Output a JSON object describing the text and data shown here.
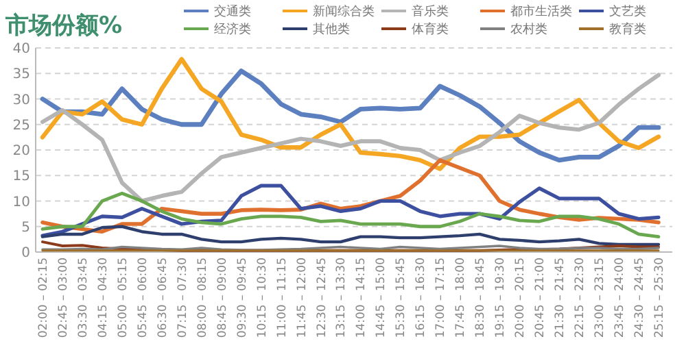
{
  "chart_data": {
    "type": "line",
    "title": "市场份额%",
    "categories": [
      "02:00 – 02:15",
      "02:45 – 03:00",
      "03:30 – 03:45",
      "04:15 – 04:30",
      "05:00 – 05:15",
      "05:45 – 06:00",
      "06:30 – 06:45",
      "07:15 – 07:30",
      "08:00 – 08:15",
      "08:45 – 09:00",
      "09:30 – 09:45",
      "10:15 – 10:30",
      "11:00 – 11:15",
      "11:45 – 12:00",
      "12:30 – 12:45",
      "13:15 – 13:30",
      "14:00 – 14:15",
      "14:45 – 15:00",
      "15:30 – 15:45",
      "16:15 – 16:30",
      "17:00 – 17:15",
      "17:45 – 18:00",
      "18:30 – 18:45",
      "19:15 – 19:30",
      "20:00 – 20:15",
      "20:45 – 21:00",
      "21:30 – 21:45",
      "22:15 – 22:30",
      "23:00 – 23:15",
      "23:45 – 24:00",
      "24:30 – 24:45",
      "25:15 – 25:30"
    ],
    "series": [
      {
        "name": "交通类",
        "color": "#5b7fbf",
        "values": [
          30,
          27.5,
          27.5,
          27,
          32,
          28,
          26,
          25,
          25,
          31,
          35.5,
          33,
          29,
          27,
          26.5,
          25.5,
          28,
          28.2,
          28,
          28.2,
          32.5,
          30.7,
          28.5,
          25.3,
          21.7,
          19.5,
          18,
          18.6,
          18.6,
          20.8,
          24.4,
          24.4
        ]
      },
      {
        "name": "新闻综合类",
        "color": "#f5a623",
        "values": [
          22.5,
          27.5,
          27,
          29.5,
          26,
          25,
          32,
          37.8,
          32,
          29.5,
          23,
          22,
          20.5,
          20.5,
          23,
          25,
          19.5,
          19.2,
          18.8,
          18,
          16.3,
          20.4,
          22.6,
          22.6,
          23,
          25.3,
          27.6,
          29.8,
          25.3,
          21.7,
          20.4,
          22.6
        ]
      },
      {
        "name": "音乐类",
        "color": "#b4b4b4",
        "values": [
          25.5,
          27.8,
          25,
          22,
          13.6,
          10,
          11,
          11.8,
          15.4,
          18.6,
          19.5,
          20.4,
          21.3,
          22.2,
          21.7,
          20.8,
          21.7,
          21.7,
          20.4,
          20,
          18,
          19.5,
          20.8,
          23.5,
          26.7,
          25.3,
          24.4,
          24,
          25.3,
          28.9,
          32,
          34.7
        ]
      },
      {
        "name": "都市生活类",
        "color": "#e0702e",
        "values": [
          5.8,
          5,
          4.5,
          4,
          5.5,
          5.5,
          8.5,
          8,
          7.5,
          7.5,
          8.2,
          8.3,
          8.2,
          8.3,
          9.5,
          8.5,
          9,
          10,
          11,
          14,
          18,
          16.5,
          15,
          10,
          8.3,
          7.5,
          6.8,
          6.3,
          6.7,
          6.5,
          6.3,
          5.8
        ]
      },
      {
        "name": "文艺类",
        "color": "#3d4f9f",
        "values": [
          3.2,
          4,
          5.5,
          7,
          6.8,
          8.5,
          7,
          5.5,
          6,
          6.2,
          11,
          13,
          13,
          8.5,
          9,
          8,
          8.5,
          10,
          10,
          8,
          7,
          7.5,
          7.5,
          6.5,
          9.8,
          12.5,
          10.5,
          10.5,
          10.5,
          7.5,
          6.5,
          6.8
        ]
      },
      {
        "name": "经济类",
        "color": "#6aa84f",
        "values": [
          4.5,
          5,
          5,
          10,
          11.5,
          10,
          8,
          6.5,
          5.8,
          5.5,
          6.5,
          7,
          7,
          6.8,
          6,
          6.2,
          5.5,
          5.5,
          5.5,
          5,
          5,
          6,
          7.5,
          7,
          6.2,
          6,
          7,
          7,
          6.5,
          5.5,
          3.5,
          3
        ]
      },
      {
        "name": "其他类",
        "color": "#2e3f6e",
        "values": [
          3,
          3.5,
          3.5,
          4.8,
          5,
          4,
          3.5,
          3.5,
          2.5,
          2,
          2,
          2.5,
          2.7,
          2.5,
          2,
          2,
          3,
          3,
          2.8,
          2.8,
          3,
          3.2,
          3.5,
          2.5,
          2.3,
          2,
          2.2,
          2.5,
          1.7,
          1.5,
          1.5,
          1.5
        ]
      },
      {
        "name": "体育类",
        "color": "#8b3a1a",
        "values": [
          2,
          1.2,
          1.3,
          0.8,
          0.6,
          0.5,
          0.4,
          0.3,
          0.3,
          0.3,
          0.3,
          0.3,
          0.3,
          0.3,
          0.3,
          0.3,
          0.3,
          0.3,
          0.3,
          0.3,
          0.3,
          0.3,
          0.3,
          0.4,
          0.5,
          0.5,
          0.6,
          0.8,
          1,
          1.2,
          1,
          1
        ]
      },
      {
        "name": "农村类",
        "color": "#808080",
        "values": [
          0.5,
          0.5,
          0.6,
          0.5,
          1,
          0.8,
          0.6,
          0.5,
          0.8,
          0.5,
          0.4,
          0.4,
          0.5,
          0.6,
          0.8,
          1,
          0.8,
          0.6,
          1,
          0.8,
          0.6,
          0.8,
          1,
          1.2,
          0.8,
          0.6,
          0.6,
          0.8,
          0.8,
          0.6,
          0.6,
          0.8
        ]
      },
      {
        "name": "教育类",
        "color": "#a0702a",
        "values": [
          0.3,
          0.3,
          0.3,
          0.3,
          0.3,
          0.3,
          0.3,
          0.3,
          0.3,
          0.3,
          0.3,
          0.3,
          0.3,
          0.3,
          0.3,
          0.3,
          0.3,
          0.3,
          0.3,
          0.3,
          0.3,
          0.3,
          0.3,
          0.3,
          0.3,
          0.3,
          0.3,
          0.3,
          0.3,
          0.3,
          0.3,
          0.3
        ]
      }
    ],
    "ylim": [
      0,
      40
    ],
    "yticks": [
      0,
      5,
      10,
      15,
      20,
      25,
      30,
      35,
      40
    ],
    "grid": "y",
    "legend": "top right"
  }
}
